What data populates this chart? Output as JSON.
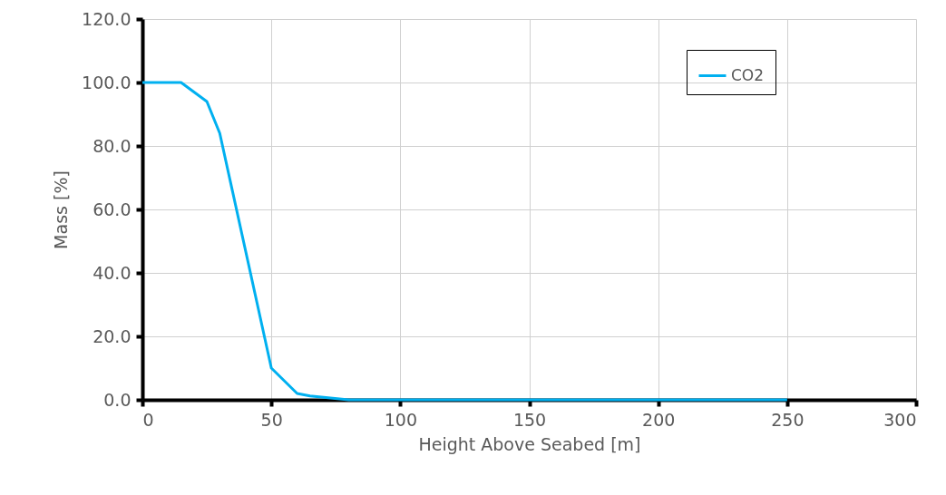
{
  "chart_data": {
    "type": "line",
    "xlabel": "Height Above Seabed [m]",
    "ylabel": "Mass  [%]",
    "x": [
      0,
      15,
      25,
      30,
      50,
      60,
      65,
      80,
      100,
      150,
      200,
      250
    ],
    "series": [
      {
        "name": "CO2",
        "color": "#00b0f0",
        "values": [
          100,
          100,
          94,
          84,
          10,
          2,
          1.2,
          0,
          0,
          0,
          0,
          0
        ]
      }
    ],
    "xlim": [
      0,
      300
    ],
    "xticks": [
      0,
      50,
      100,
      150,
      200,
      250,
      300
    ],
    "ylim": [
      0,
      120
    ],
    "yticks": [
      {
        "value": 0,
        "label": "0.0"
      },
      {
        "value": 20,
        "label": "20.0"
      },
      {
        "value": 40,
        "label": "40.0"
      },
      {
        "value": 60,
        "label": "60.0"
      },
      {
        "value": 80,
        "label": "80.0"
      },
      {
        "value": 100,
        "label": "100.0"
      },
      {
        "value": 120,
        "label": "120.0"
      }
    ],
    "grid": true,
    "legend": "top right",
    "marker": "none",
    "line_style": "solid"
  }
}
